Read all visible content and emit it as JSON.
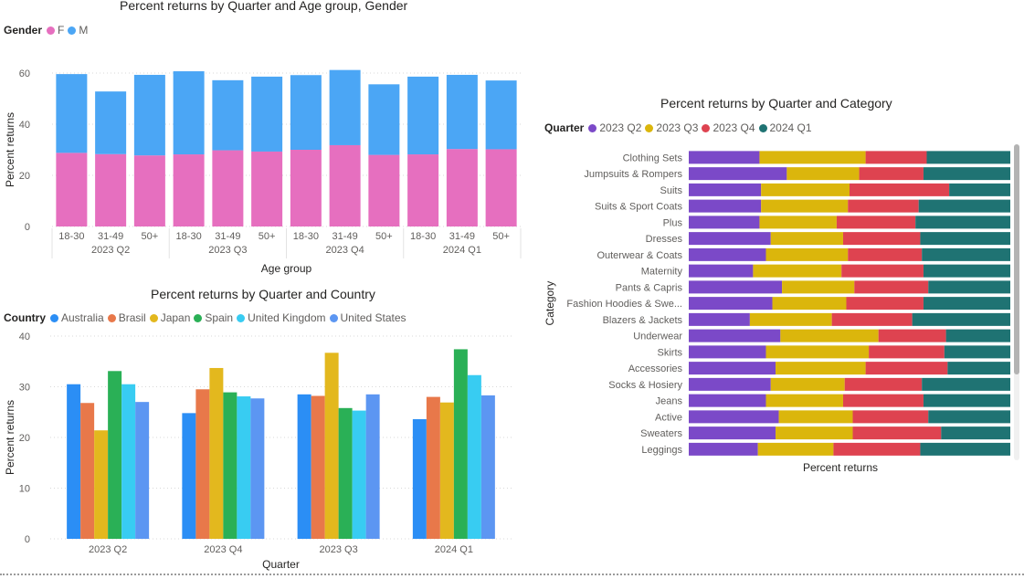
{
  "chart_data": [
    {
      "id": "age",
      "type": "bar",
      "stacked": true,
      "title": "Percent returns by Quarter and Age group, Gender",
      "legend": {
        "title": "Gender",
        "position": "top-left"
      },
      "xlabel": "Age group",
      "ylabel": "Percent returns",
      "ylim": [
        0,
        60
      ],
      "yticks": [
        0,
        20,
        40,
        60
      ],
      "grid": true,
      "groups": [
        "2023 Q2",
        "2023 Q3",
        "2023 Q4",
        "2024 Q1"
      ],
      "categories": [
        "18-30",
        "31-49",
        "50+",
        "18-30",
        "31-49",
        "50+",
        "18-30",
        "31-49",
        "50+",
        "18-30",
        "31-49",
        "50+"
      ],
      "series": [
        {
          "name": "F",
          "color": "#e66fbf",
          "values": [
            28.8,
            28.3,
            27.8,
            28.2,
            29.8,
            29.3,
            30.0,
            31.8,
            28.0,
            28.2,
            30.3,
            30.2
          ]
        },
        {
          "name": "M",
          "color": "#4ba6f5",
          "values": [
            30.8,
            24.5,
            31.5,
            32.5,
            27.4,
            29.3,
            29.2,
            29.4,
            27.6,
            30.4,
            29.0,
            26.9
          ]
        }
      ]
    },
    {
      "id": "country",
      "type": "bar",
      "title": "Percent returns by Quarter and Country",
      "legend": {
        "title": "Country",
        "position": "top-left"
      },
      "xlabel": "Quarter",
      "ylabel": "Percent returns",
      "ylim": [
        0,
        40
      ],
      "yticks": [
        0,
        10,
        20,
        30,
        40
      ],
      "grid": true,
      "categories": [
        "2023 Q2",
        "2023 Q4",
        "2023 Q3",
        "2024 Q1"
      ],
      "series": [
        {
          "name": "Australia",
          "color": "#2b8ef5",
          "values": [
            30.5,
            24.8,
            28.5,
            23.6
          ]
        },
        {
          "name": "Brasil",
          "color": "#e8784a",
          "values": [
            26.8,
            29.5,
            28.2,
            28.0
          ]
        },
        {
          "name": "Japan",
          "color": "#e3b81e",
          "values": [
            21.4,
            33.7,
            36.7,
            26.9
          ]
        },
        {
          "name": "Spain",
          "color": "#2ab056",
          "values": [
            33.1,
            28.9,
            25.8,
            37.4
          ]
        },
        {
          "name": "United Kingdom",
          "color": "#38ccf2",
          "values": [
            30.5,
            28.1,
            25.3,
            32.3
          ]
        },
        {
          "name": "United States",
          "color": "#5c96f2",
          "values": [
            27.0,
            27.7,
            28.5,
            28.3
          ]
        }
      ]
    },
    {
      "id": "category",
      "type": "bar",
      "orientation": "horizontal",
      "stacked": "100%",
      "title": "Percent returns by Quarter and Category",
      "legend": {
        "title": "Quarter",
        "position": "top-left"
      },
      "xlabel": "Percent returns",
      "ylabel": "Category",
      "categories": [
        "Clothing Sets",
        "Jumpsuits & Rompers",
        "Suits",
        "Suits & Sport Coats",
        "Plus",
        "Dresses",
        "Outerwear & Coats",
        "Maternity",
        "Pants & Capris",
        "Fashion Hoodies & Swe...",
        "Blazers & Jackets",
        "Underwear",
        "Skirts",
        "Accessories",
        "Socks & Hosiery",
        "Jeans",
        "Active",
        "Sweaters",
        "Leggings"
      ],
      "series": [
        {
          "name": "2023 Q2",
          "color": "#7b49c8",
          "values": [
            22,
            30.5,
            22.5,
            22.5,
            22,
            25.5,
            24,
            20,
            29,
            26,
            19,
            28.5,
            24,
            27,
            25.5,
            24,
            28,
            27,
            21.5
          ]
        },
        {
          "name": "2023 Q3",
          "color": "#dbb60c",
          "values": [
            33,
            22.5,
            27.5,
            27,
            24,
            22.5,
            25.5,
            27.5,
            22.5,
            23,
            25.5,
            30.5,
            32,
            28,
            23,
            24,
            23,
            24,
            23.5
          ]
        },
        {
          "name": "2023 Q4",
          "color": "#de4350",
          "values": [
            19,
            20,
            31,
            22,
            24.5,
            24,
            23,
            25.5,
            23,
            24,
            25,
            21,
            23.5,
            25.5,
            24,
            25,
            23.5,
            27.5,
            27
          ]
        },
        {
          "name": "2024 Q1",
          "color": "#1f7373",
          "values": [
            26,
            27,
            19,
            28.5,
            29.5,
            28,
            27.5,
            27,
            25.5,
            27,
            30.5,
            20,
            20.5,
            19.5,
            27.5,
            27,
            25.5,
            21.5,
            28
          ]
        }
      ]
    }
  ]
}
